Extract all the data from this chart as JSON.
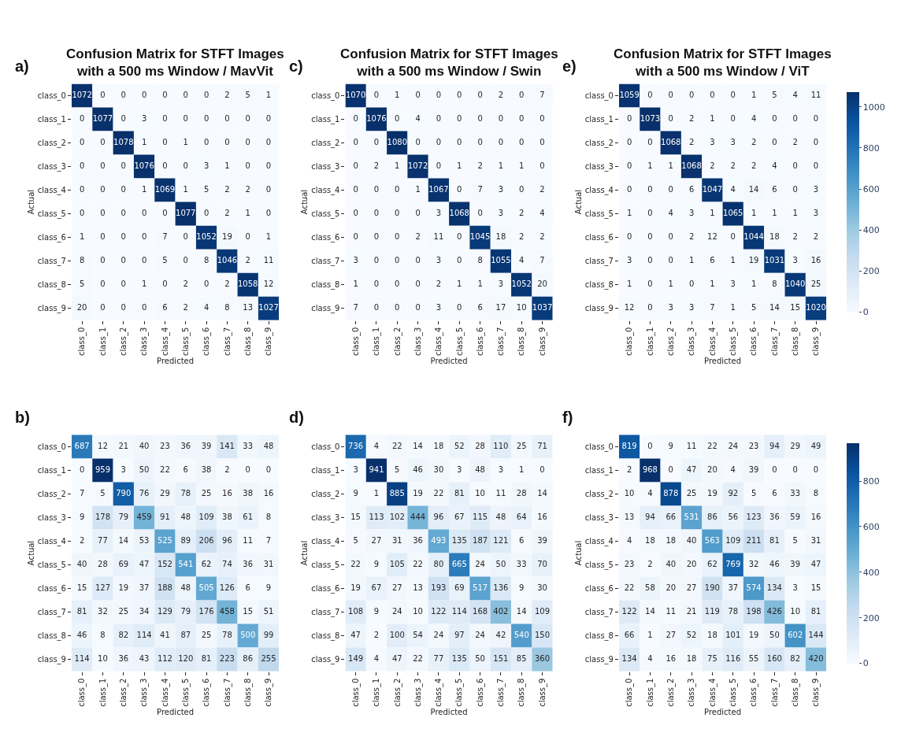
{
  "chart_data": [
    {
      "type": "heatmap",
      "title": "Confusion Matrix for STFT Images\nwith a 500 ms Window / MavVit",
      "xlabel": "Predicted",
      "ylabel": "Actual",
      "annotations": [
        "a)"
      ],
      "data_labels": true,
      "categories": [
        "class_0",
        "class_1",
        "class_2",
        "class_3",
        "class_4",
        "class_5",
        "class_6",
        "class_7",
        "class_8",
        "class_9"
      ],
      "y_categories": [
        "class_0",
        "class_1",
        "class_2",
        "class_3",
        "class_4",
        "class_5",
        "class_6",
        "class_7",
        "class_8",
        "class_9"
      ],
      "cells": [
        [
          1072,
          0,
          0,
          0,
          0,
          0,
          0,
          2,
          5,
          1
        ],
        [
          0,
          1077,
          0,
          3,
          0,
          0,
          0,
          0,
          0,
          0
        ],
        [
          0,
          0,
          1078,
          1,
          0,
          1,
          0,
          0,
          0,
          0
        ],
        [
          0,
          0,
          0,
          1076,
          0,
          0,
          3,
          1,
          0,
          0
        ],
        [
          0,
          0,
          0,
          1,
          1069,
          1,
          5,
          2,
          2,
          0
        ],
        [
          0,
          0,
          0,
          0,
          0,
          1077,
          0,
          2,
          1,
          0
        ],
        [
          1,
          0,
          0,
          0,
          7,
          0,
          1052,
          19,
          0,
          1
        ],
        [
          8,
          0,
          0,
          0,
          5,
          0,
          8,
          1046,
          2,
          11
        ],
        [
          5,
          0,
          0,
          1,
          0,
          2,
          0,
          2,
          1058,
          12
        ],
        [
          20,
          0,
          0,
          0,
          6,
          2,
          4,
          8,
          13,
          1027
        ]
      ]
    },
    {
      "type": "heatmap",
      "title": "Confusion Matrix for STFT Images\nwith a 500 ms Window / Swin",
      "xlabel": "Predicted",
      "ylabel": "Actual",
      "annotations": [
        "c)"
      ],
      "data_labels": true,
      "categories": [
        "class_0",
        "class_1",
        "class_2",
        "class_3",
        "class_4",
        "class_5",
        "class_6",
        "class_7",
        "class_8",
        "class_9"
      ],
      "y_categories": [
        "class_0",
        "class_1",
        "class_2",
        "class_3",
        "class_4",
        "class_5",
        "class_6",
        "class_7",
        "class_8",
        "class_9"
      ],
      "cells": [
        [
          1070,
          0,
          1,
          0,
          0,
          0,
          0,
          2,
          0,
          7
        ],
        [
          0,
          1076,
          0,
          4,
          0,
          0,
          0,
          0,
          0,
          0
        ],
        [
          0,
          0,
          1080,
          0,
          0,
          0,
          0,
          0,
          0,
          0
        ],
        [
          0,
          2,
          1,
          1072,
          0,
          1,
          2,
          1,
          1,
          0
        ],
        [
          0,
          0,
          0,
          1,
          1067,
          0,
          7,
          3,
          0,
          2
        ],
        [
          0,
          0,
          0,
          0,
          3,
          1068,
          0,
          3,
          2,
          4
        ],
        [
          0,
          0,
          0,
          2,
          11,
          0,
          1045,
          18,
          2,
          2
        ],
        [
          3,
          0,
          0,
          0,
          3,
          0,
          8,
          1055,
          4,
          7
        ],
        [
          1,
          0,
          0,
          0,
          2,
          1,
          1,
          3,
          1052,
          20
        ],
        [
          7,
          0,
          0,
          0,
          3,
          0,
          6,
          17,
          10,
          1037
        ]
      ]
    },
    {
      "type": "heatmap",
      "title": "Confusion Matrix for STFT Images\nwith a 500 ms Window / ViT",
      "xlabel": "Predicted",
      "ylabel": "Actual",
      "annotations": [
        "e)"
      ],
      "data_labels": true,
      "categories": [
        "class_0",
        "class_1",
        "class_2",
        "class_3",
        "class_4",
        "class_5",
        "class_6",
        "class_7",
        "class_8",
        "class_9"
      ],
      "y_categories": [
        "class_0",
        "class_1",
        "class_2",
        "class_3",
        "class_4",
        "class_5",
        "class_6",
        "class_7",
        "class_8",
        "class_9"
      ],
      "clim": [
        0,
        1073
      ],
      "cticks": [
        0,
        200,
        400,
        600,
        800,
        1000
      ],
      "cells": [
        [
          1059,
          0,
          0,
          0,
          0,
          0,
          1,
          5,
          4,
          11
        ],
        [
          0,
          1073,
          0,
          2,
          1,
          0,
          4,
          0,
          0,
          0
        ],
        [
          0,
          0,
          1068,
          2,
          3,
          3,
          2,
          0,
          2,
          0
        ],
        [
          0,
          1,
          1,
          1068,
          2,
          2,
          2,
          4,
          0,
          0
        ],
        [
          0,
          0,
          0,
          6,
          1047,
          4,
          14,
          6,
          0,
          3
        ],
        [
          1,
          0,
          4,
          3,
          1,
          1065,
          1,
          1,
          1,
          3
        ],
        [
          0,
          0,
          0,
          2,
          12,
          0,
          1044,
          18,
          2,
          2
        ],
        [
          3,
          0,
          0,
          1,
          6,
          1,
          19,
          1031,
          3,
          16
        ],
        [
          1,
          0,
          1,
          0,
          1,
          3,
          1,
          8,
          1040,
          25
        ],
        [
          12,
          0,
          3,
          3,
          7,
          1,
          5,
          14,
          15,
          1020
        ]
      ]
    },
    {
      "type": "heatmap",
      "xlabel": "Predicted",
      "ylabel": "Actual",
      "annotations": [
        "b)"
      ],
      "data_labels": true,
      "categories": [
        "class_0",
        "class_1",
        "class_2",
        "class_3",
        "class_4",
        "class_5",
        "class_6",
        "class_7",
        "class_8",
        "class_9"
      ],
      "y_categories": [
        "class_0",
        "class_1",
        "class_2",
        "class_3",
        "class_4",
        "class_5",
        "class_6",
        "class_7",
        "class_8",
        "class_9"
      ],
      "cells": [
        [
          687,
          12,
          21,
          40,
          23,
          36,
          39,
          141,
          33,
          48
        ],
        [
          0,
          959,
          3,
          50,
          22,
          6,
          38,
          2,
          0,
          0
        ],
        [
          7,
          5,
          790,
          76,
          29,
          78,
          25,
          16,
          38,
          16
        ],
        [
          9,
          178,
          79,
          459,
          91,
          48,
          109,
          38,
          61,
          8
        ],
        [
          2,
          77,
          14,
          53,
          525,
          89,
          206,
          96,
          11,
          7
        ],
        [
          40,
          28,
          69,
          47,
          152,
          541,
          62,
          74,
          36,
          31
        ],
        [
          15,
          127,
          19,
          37,
          188,
          48,
          505,
          126,
          6,
          9
        ],
        [
          81,
          32,
          25,
          34,
          129,
          79,
          176,
          458,
          15,
          51
        ],
        [
          46,
          8,
          82,
          114,
          41,
          87,
          25,
          78,
          500,
          99
        ],
        [
          114,
          10,
          36,
          43,
          112,
          120,
          81,
          223,
          86,
          255
        ]
      ]
    },
    {
      "type": "heatmap",
      "xlabel": "Predicted",
      "ylabel": "Actual",
      "annotations": [
        "d)"
      ],
      "data_labels": true,
      "categories": [
        "class_0",
        "class_1",
        "class_2",
        "class_3",
        "class_4",
        "class_5",
        "class_6",
        "class_7",
        "class_8",
        "class_9"
      ],
      "y_categories": [
        "class_0",
        "class_1",
        "class_2",
        "class_3",
        "class_4",
        "class_5",
        "class_6",
        "class_7",
        "class_8",
        "class_9"
      ],
      "cells": [
        [
          736,
          4,
          22,
          14,
          18,
          52,
          28,
          110,
          25,
          71
        ],
        [
          3,
          941,
          5,
          46,
          30,
          3,
          48,
          3,
          1,
          0
        ],
        [
          9,
          1,
          885,
          19,
          22,
          81,
          10,
          11,
          28,
          14
        ],
        [
          15,
          113,
          102,
          444,
          96,
          67,
          115,
          48,
          64,
          16
        ],
        [
          5,
          27,
          31,
          36,
          493,
          135,
          187,
          121,
          6,
          39
        ],
        [
          22,
          9,
          105,
          22,
          80,
          665,
          24,
          50,
          33,
          70
        ],
        [
          19,
          67,
          27,
          13,
          193,
          69,
          517,
          136,
          9,
          30
        ],
        [
          108,
          9,
          24,
          10,
          122,
          114,
          168,
          402,
          14,
          109
        ],
        [
          47,
          2,
          100,
          54,
          24,
          97,
          24,
          42,
          540,
          150
        ],
        [
          149,
          4,
          47,
          22,
          77,
          135,
          50,
          151,
          85,
          360
        ]
      ]
    },
    {
      "type": "heatmap",
      "xlabel": "Predicted",
      "ylabel": "Actual",
      "annotations": [
        "f)"
      ],
      "data_labels": true,
      "categories": [
        "class_0",
        "class_1",
        "class_2",
        "class_3",
        "class_4",
        "class_5",
        "class_6",
        "class_7",
        "class_8",
        "class_9"
      ],
      "y_categories": [
        "class_0",
        "class_1",
        "class_2",
        "class_3",
        "class_4",
        "class_5",
        "class_6",
        "class_7",
        "class_8",
        "class_9"
      ],
      "clim": [
        0,
        968
      ],
      "cticks": [
        0,
        200,
        400,
        600,
        800
      ],
      "cells": [
        [
          819,
          0,
          9,
          11,
          22,
          24,
          23,
          94,
          29,
          49
        ],
        [
          2,
          968,
          0,
          47,
          20,
          4,
          39,
          0,
          0,
          0
        ],
        [
          10,
          4,
          878,
          25,
          19,
          92,
          5,
          6,
          33,
          8
        ],
        [
          13,
          94,
          66,
          531,
          86,
          56,
          123,
          36,
          59,
          16
        ],
        [
          4,
          18,
          18,
          40,
          563,
          109,
          211,
          81,
          5,
          31
        ],
        [
          23,
          2,
          40,
          20,
          62,
          769,
          32,
          46,
          39,
          47
        ],
        [
          22,
          58,
          20,
          27,
          190,
          37,
          574,
          134,
          3,
          15
        ],
        [
          122,
          14,
          11,
          21,
          119,
          78,
          198,
          426,
          10,
          81
        ],
        [
          66,
          1,
          27,
          52,
          18,
          101,
          19,
          50,
          602,
          144
        ],
        [
          134,
          4,
          16,
          18,
          75,
          116,
          55,
          160,
          82,
          420
        ]
      ]
    }
  ]
}
